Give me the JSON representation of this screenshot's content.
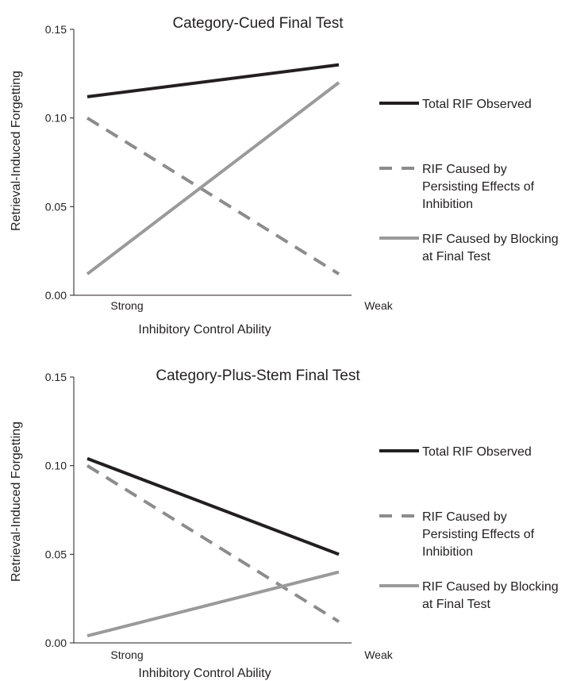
{
  "chart_data": [
    {
      "type": "line",
      "title": "Category-Cued Final Test",
      "xlabel": "Inhibitory Control Ability",
      "ylabel": "Retrieval-Induced Forgetting",
      "categories": [
        "Strong",
        "Weak"
      ],
      "ylim": [
        0,
        0.15
      ],
      "yticks": [
        "0.00",
        "0.05",
        "0.10",
        "0.15"
      ],
      "grid": false,
      "legend_position": "right",
      "series": [
        {
          "name": "Total RIF Observed",
          "values": [
            0.112,
            0.13
          ],
          "color": "#231f20",
          "dash": "solid"
        },
        {
          "name": "RIF Caused by Persisting Effects of Inhibition",
          "legend_lines": [
            "RIF Caused by",
            "Persisting Effects of",
            "Inhibition"
          ],
          "values": [
            0.1,
            0.012
          ],
          "color": "#8c8c8c",
          "dash": "dashed"
        },
        {
          "name": "RIF Caused by Blocking at Final Test",
          "legend_lines": [
            "RIF Caused by Blocking",
            "at Final Test"
          ],
          "values": [
            0.012,
            0.12
          ],
          "color": "#9a9a9a",
          "dash": "solid"
        }
      ]
    },
    {
      "type": "line",
      "title": "Category-Plus-Stem Final Test",
      "xlabel": "Inhibitory Control Ability",
      "ylabel": "Retrieval-Induced Forgetting",
      "categories": [
        "Strong",
        "Weak"
      ],
      "ylim": [
        0,
        0.15
      ],
      "yticks": [
        "0.00",
        "0.05",
        "0.10",
        "0.15"
      ],
      "grid": false,
      "legend_position": "right",
      "series": [
        {
          "name": "Total RIF Observed",
          "values": [
            0.104,
            0.05
          ],
          "color": "#231f20",
          "dash": "solid"
        },
        {
          "name": "RIF Caused by Persisting Effects of Inhibition",
          "legend_lines": [
            "RIF Caused by",
            "Persisting Effects of",
            "Inhibition"
          ],
          "values": [
            0.1,
            0.012
          ],
          "color": "#8c8c8c",
          "dash": "dashed"
        },
        {
          "name": "RIF Caused by Blocking at Final Test",
          "legend_lines": [
            "RIF Caused by Blocking",
            "at Final Test"
          ],
          "values": [
            0.004,
            0.04
          ],
          "color": "#9a9a9a",
          "dash": "solid"
        }
      ]
    }
  ]
}
